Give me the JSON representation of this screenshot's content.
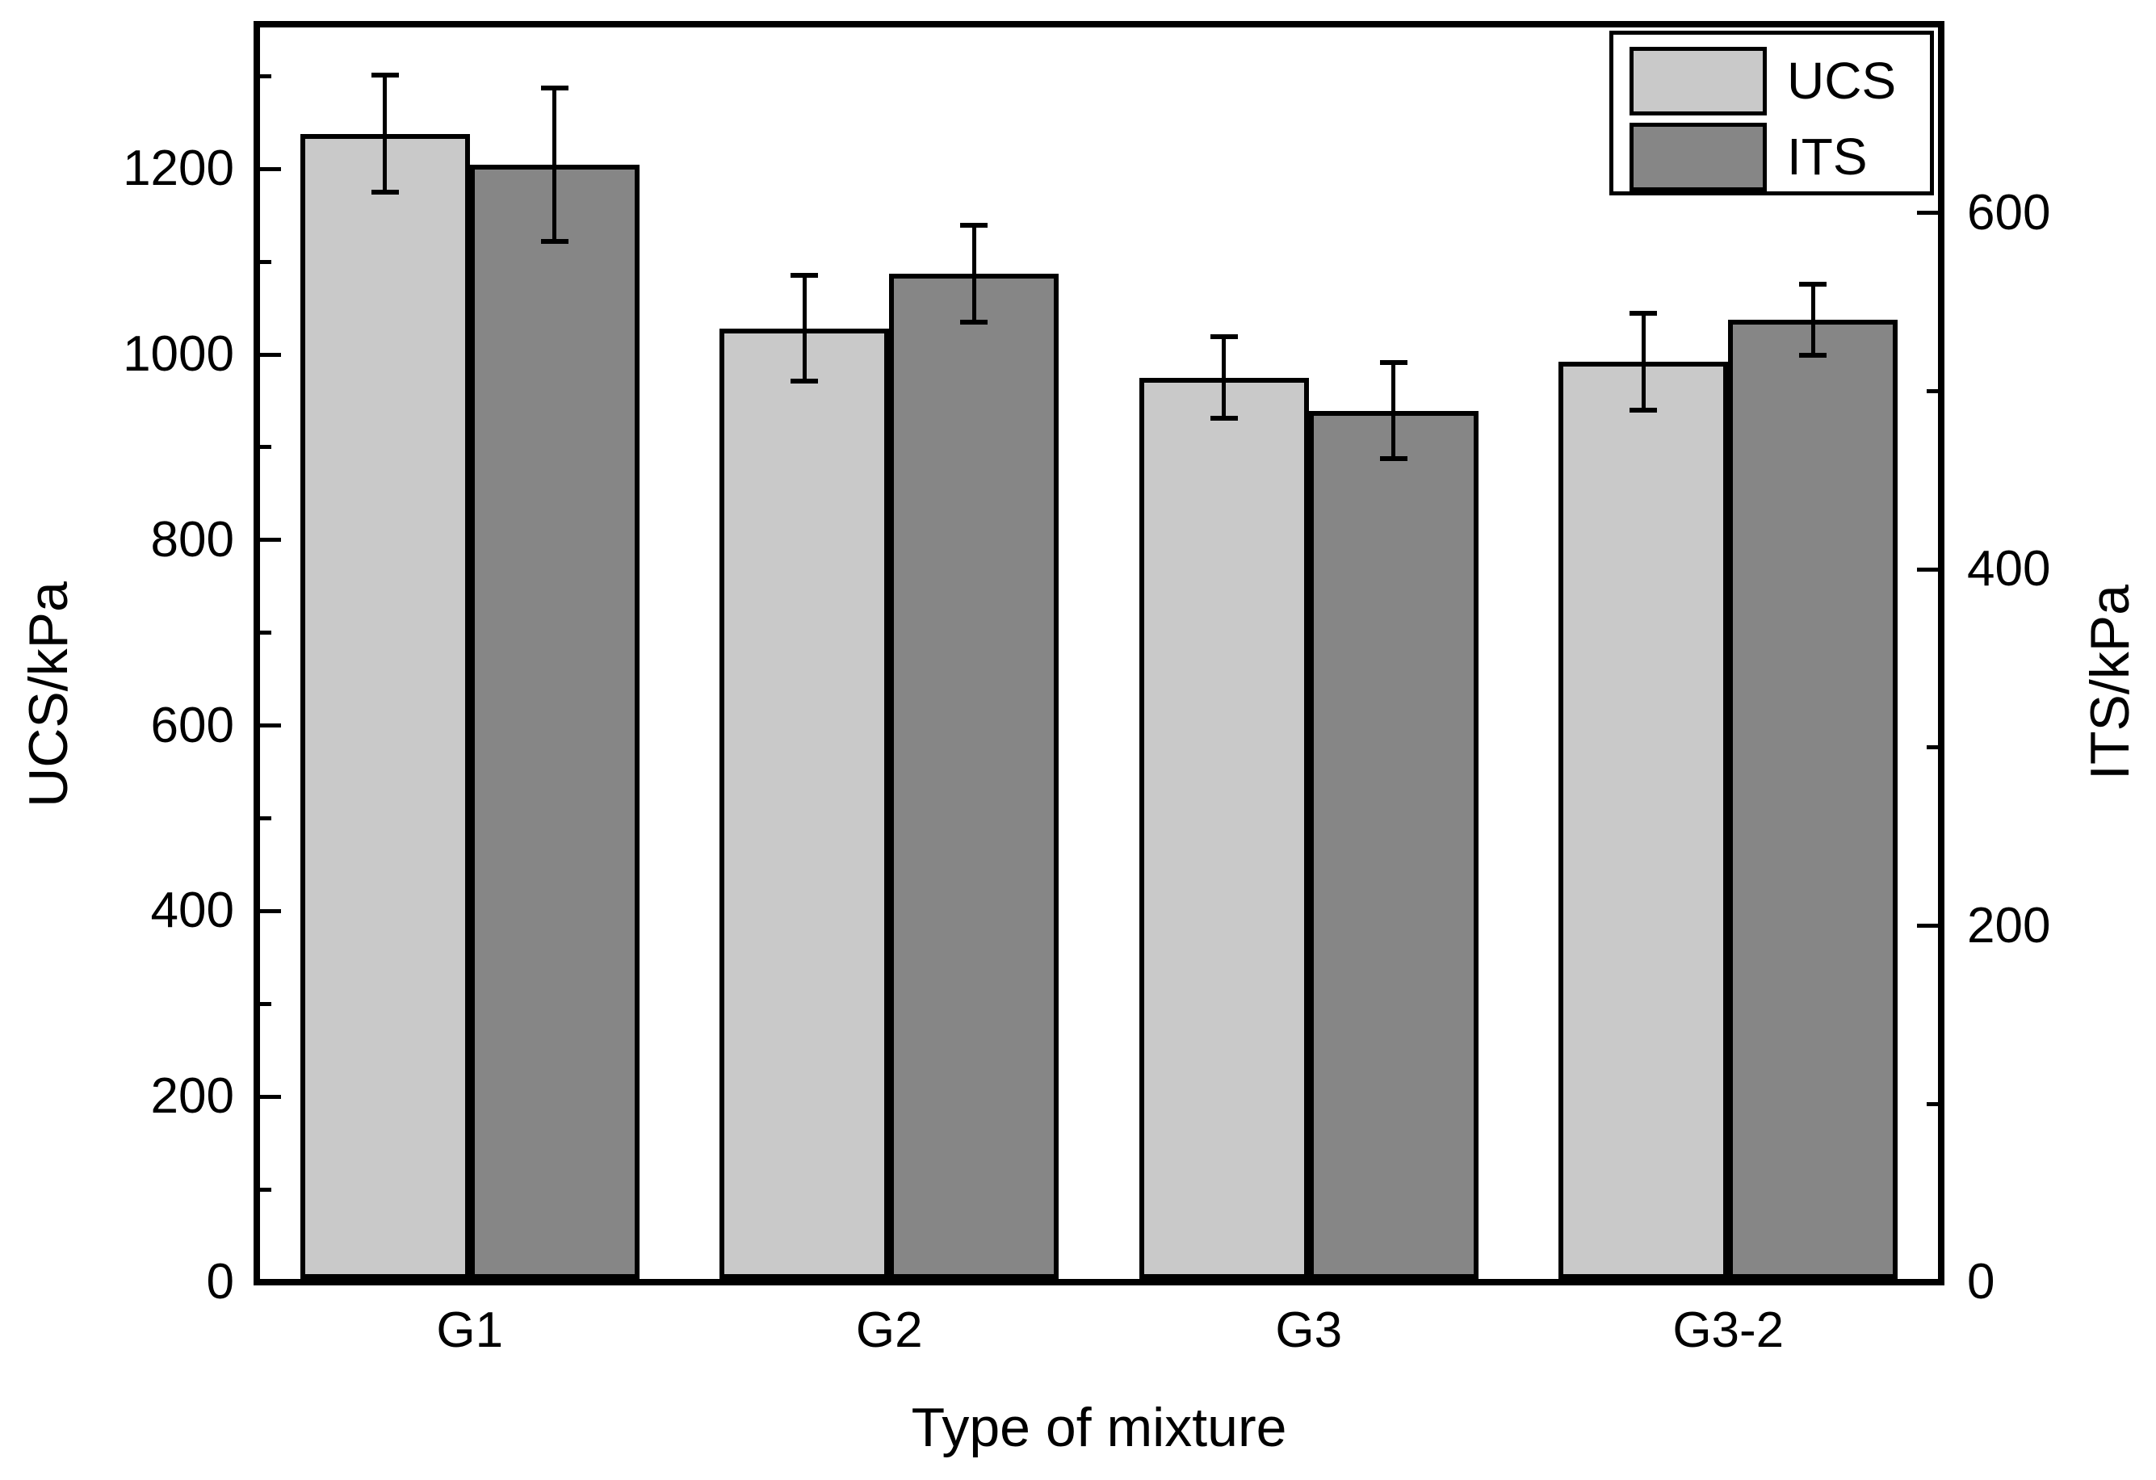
{
  "chart_data": {
    "type": "bar",
    "title": "",
    "categories": [
      "G1",
      "G2",
      "G3",
      "G3-2"
    ],
    "series": [
      {
        "name": "UCS",
        "axis": "left",
        "color": "#c9c9c9",
        "values": [
          1238,
          1028,
          975,
          992
        ],
        "errors": [
          63,
          57,
          44,
          52
        ]
      },
      {
        "name": "ITS",
        "axis": "right",
        "color": "#868686",
        "values": [
          627,
          566,
          489,
          540
        ],
        "errors": [
          43,
          27,
          27,
          20
        ]
      }
    ],
    "xlabel": "Type of mixture",
    "left_axis": {
      "title": "UCS/kPa",
      "min": 0,
      "max": 1356,
      "major_ticks": [
        0,
        200,
        400,
        600,
        800,
        1000,
        1200
      ],
      "minor_ticks": [
        100,
        300,
        500,
        700,
        900,
        1100,
        1300
      ]
    },
    "right_axis": {
      "title": "ITS/kPa",
      "min": 0,
      "max": 706,
      "major_ticks": [
        0,
        200,
        400,
        600
      ],
      "minor_ticks": [
        100,
        300,
        500
      ]
    },
    "legend_position": "top-right",
    "grid": false,
    "background": "#ffffff",
    "axis_color": "#000000",
    "error_bars": true
  }
}
